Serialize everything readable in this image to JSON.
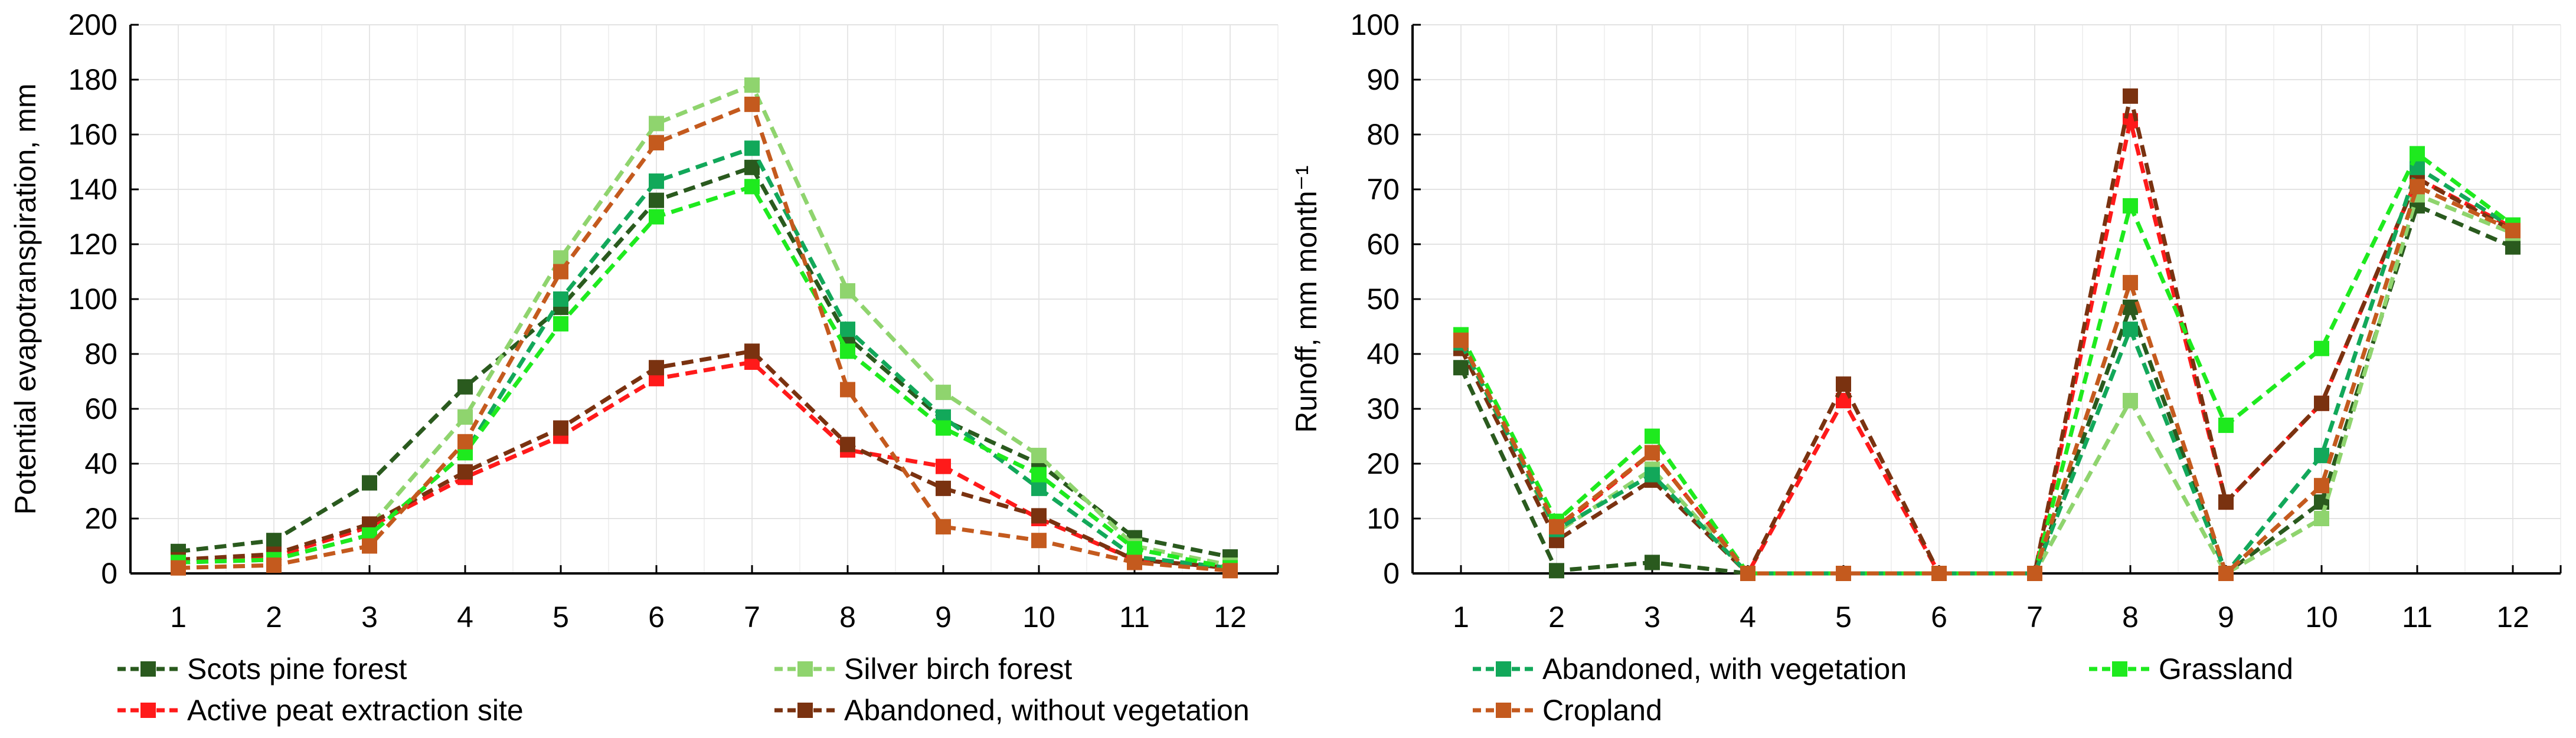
{
  "chart_data": [
    {
      "type": "line",
      "title": "",
      "xlabel": "",
      "ylabel": "Potential evapotranspiration, mm",
      "x": [
        1,
        2,
        3,
        4,
        5,
        6,
        7,
        8,
        9,
        10,
        11,
        12
      ],
      "ylim": [
        0,
        200
      ],
      "yticks": [
        0,
        20,
        40,
        60,
        80,
        100,
        120,
        140,
        160,
        180,
        200
      ],
      "grid": true,
      "legend_placement": "bottom",
      "legend": [
        "Scots pine forest",
        "Silver birch forest",
        "Active peat extraction site",
        "Abandoned, without vegetation"
      ],
      "series": [
        {
          "name": "Scots pine forest",
          "color": "#2a5a1e",
          "values": [
            8,
            12,
            33,
            68,
            97,
            136,
            148,
            86,
            56,
            40,
            13,
            6
          ]
        },
        {
          "name": "Silver birch forest",
          "color": "#8fd46e",
          "values": [
            4,
            6,
            17,
            57,
            115,
            164,
            178,
            103,
            66,
            43,
            10,
            3
          ]
        },
        {
          "name": "Active peat extraction site",
          "color": "#ff1a1a",
          "values": [
            4,
            6,
            17,
            35,
            50,
            71,
            77,
            45,
            39,
            20,
            5,
            2
          ]
        },
        {
          "name": "Abandoned, without vegetation",
          "color": "#7a3210",
          "values": [
            5,
            7,
            18,
            37,
            53,
            75,
            81,
            47,
            31,
            21,
            5,
            2
          ]
        },
        {
          "name": "Abandoned, with vegetation",
          "color": "#12a85a",
          "values": [
            4,
            5,
            14,
            44,
            100,
            143,
            155,
            89,
            57,
            31,
            6,
            2
          ]
        },
        {
          "name": "Grassland",
          "color": "#1eea1e",
          "values": [
            4,
            5,
            14,
            44,
            91,
            130,
            141,
            81,
            53,
            36,
            9,
            2
          ]
        },
        {
          "name": "Cropland",
          "color": "#c45a1e",
          "values": [
            2,
            3,
            10,
            48,
            110,
            157,
            171,
            67,
            17,
            12,
            4,
            1
          ]
        }
      ]
    },
    {
      "type": "line",
      "title": "",
      "xlabel": "",
      "ylabel": "Runoff, mm month⁻¹",
      "x": [
        1,
        2,
        3,
        4,
        5,
        6,
        7,
        8,
        9,
        10,
        11,
        12
      ],
      "ylim": [
        0,
        100
      ],
      "yticks": [
        0,
        10,
        20,
        30,
        40,
        50,
        60,
        70,
        80,
        90,
        100
      ],
      "grid": true,
      "legend_placement": "bottom",
      "legend": [
        "Abandoned, with vegetation",
        "Grassland",
        "Cropland"
      ],
      "series": [
        {
          "name": "Scots pine forest",
          "color": "#2a5a1e",
          "values": [
            37.5,
            0.5,
            2,
            0,
            0,
            0,
            0,
            48.5,
            0,
            13,
            67,
            59.5
          ]
        },
        {
          "name": "Silver birch forest",
          "color": "#8fd46e",
          "values": [
            42,
            7.5,
            19,
            0,
            0,
            0,
            0,
            31.5,
            0,
            10,
            69,
            62
          ]
        },
        {
          "name": "Active peat extraction site",
          "color": "#ff1a1a",
          "values": [
            42,
            8,
            22,
            0,
            31.5,
            0,
            0,
            82.5,
            13,
            31,
            72,
            63
          ]
        },
        {
          "name": "Abandoned, without vegetation",
          "color": "#7a3210",
          "values": [
            41,
            6,
            17,
            0,
            34.5,
            0,
            0,
            87,
            13,
            31,
            72,
            62.5
          ]
        },
        {
          "name": "Abandoned, with vegetation",
          "color": "#12a85a",
          "values": [
            42,
            8,
            18,
            0,
            0,
            0,
            0,
            44.5,
            0,
            21.5,
            74,
            63
          ]
        },
        {
          "name": "Grassland",
          "color": "#1eea1e",
          "values": [
            43.5,
            9.5,
            25,
            0,
            0,
            0,
            0,
            67,
            27,
            41,
            76.5,
            63.5
          ]
        },
        {
          "name": "Cropland",
          "color": "#c45a1e",
          "values": [
            42.5,
            8.5,
            22,
            0,
            0,
            0,
            0,
            53,
            0,
            16,
            70.5,
            62.5
          ]
        }
      ]
    }
  ]
}
